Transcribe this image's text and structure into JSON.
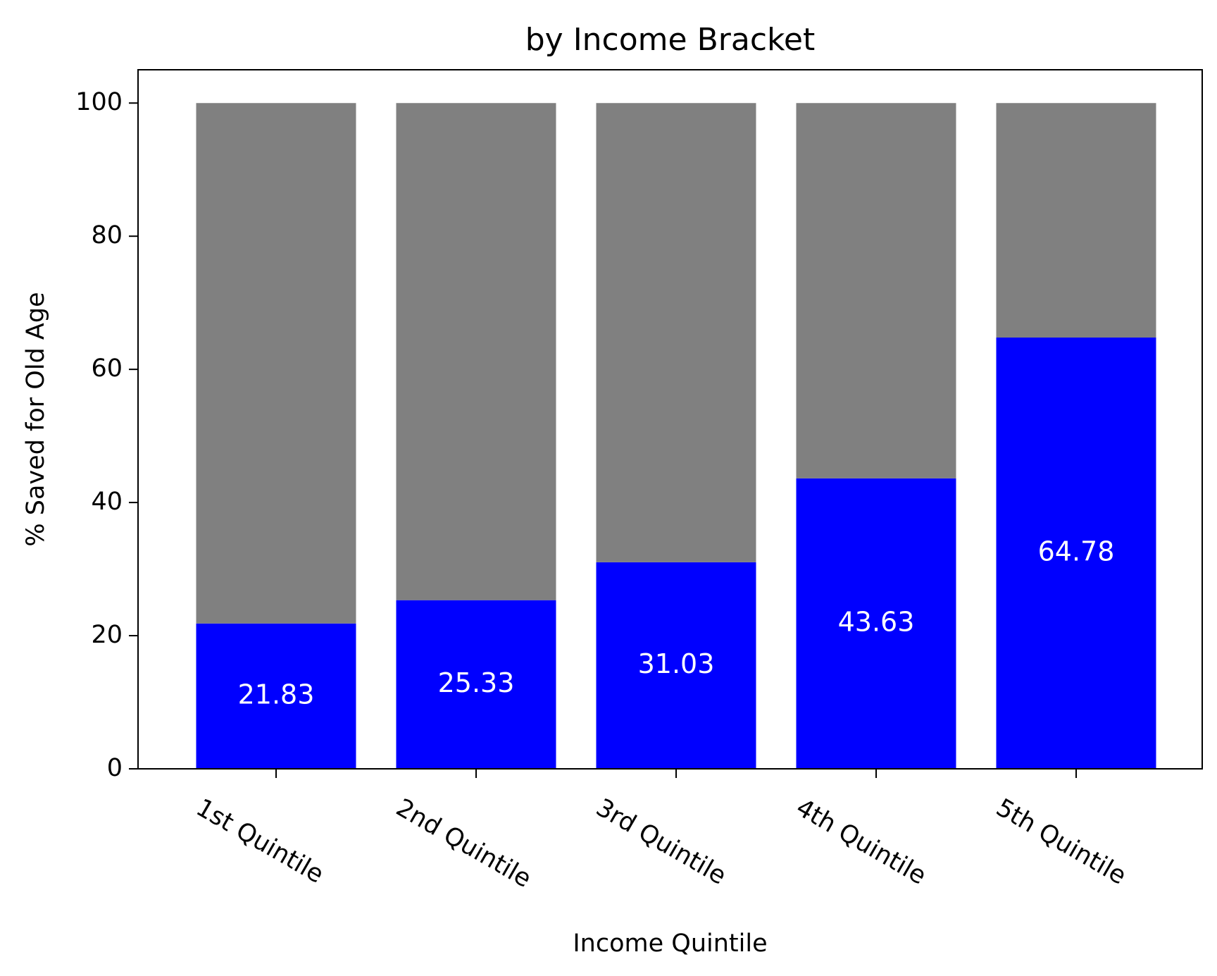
{
  "chart_data": {
    "type": "bar",
    "stacked": true,
    "title": "by Income Bracket",
    "xlabel": "Income Quintile",
    "ylabel": "% Saved for Old Age",
    "categories": [
      "1st Quintile",
      "2nd Quintile",
      "3rd Quintile",
      "4th Quintile",
      "5th Quintile"
    ],
    "series": [
      {
        "color": "#0000ff",
        "values": [
          21.83,
          25.33,
          31.03,
          43.63,
          64.78
        ]
      },
      {
        "color": "#808080",
        "values": [
          78.17,
          74.67,
          68.97,
          56.37,
          35.22
        ]
      }
    ],
    "data_labels": [
      "21.83",
      "25.33",
      "31.03",
      "43.63",
      "64.78"
    ],
    "yticks": [
      0,
      20,
      40,
      60,
      80,
      100
    ],
    "ytick_labels": [
      "0",
      "20",
      "40",
      "60",
      "80",
      "100"
    ],
    "ylim": [
      0,
      105
    ],
    "grid": false,
    "legend": "none"
  }
}
